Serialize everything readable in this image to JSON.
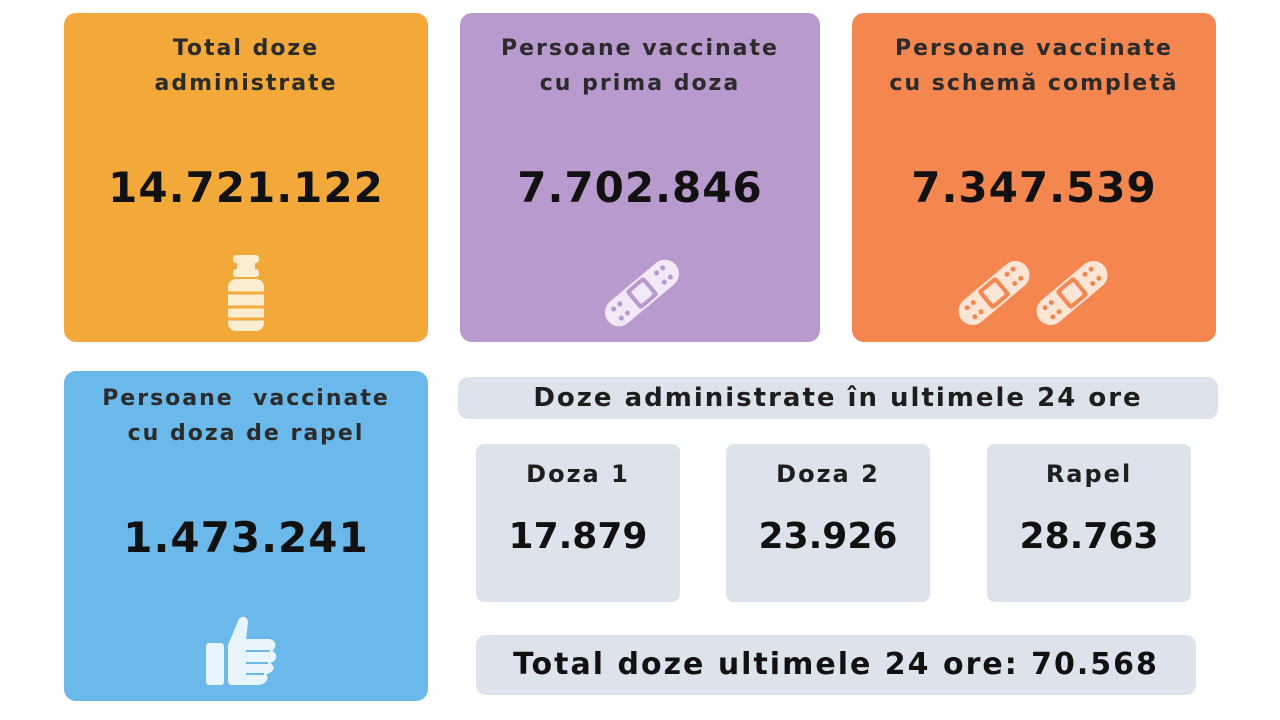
{
  "cards": {
    "total_doses": {
      "title": "Total doze\nadministrate",
      "value": "14.721.122",
      "icon": "vaccine-vial-icon"
    },
    "first_dose": {
      "title": "Persoane vaccinate\ncu prima doza",
      "value": "7.702.846",
      "icon": "bandage-icon"
    },
    "complete": {
      "title": "Persoane vaccinate\ncu schemă completă",
      "value": "7.347.539",
      "icon": "double-bandage-icon"
    },
    "booster": {
      "title": "Persoane  vaccinate\ncu doza de rapel",
      "value": "1.473.241",
      "icon": "thumbs-up-icon"
    }
  },
  "last24": {
    "title": "Doze administrate în ultimele 24 ore",
    "items": [
      {
        "label": "Doza 1",
        "value": "17.879"
      },
      {
        "label": "Doza 2",
        "value": "23.926"
      },
      {
        "label": "Rapel",
        "value": "28.763"
      }
    ],
    "total": "Total doze ultimele 24 ore: 70.568"
  },
  "colors": {
    "orange": "#f3a93a",
    "purple": "#b99ace",
    "coral": "#f4874f",
    "blue": "#6bb9ea",
    "panel": "#dde3ec"
  }
}
